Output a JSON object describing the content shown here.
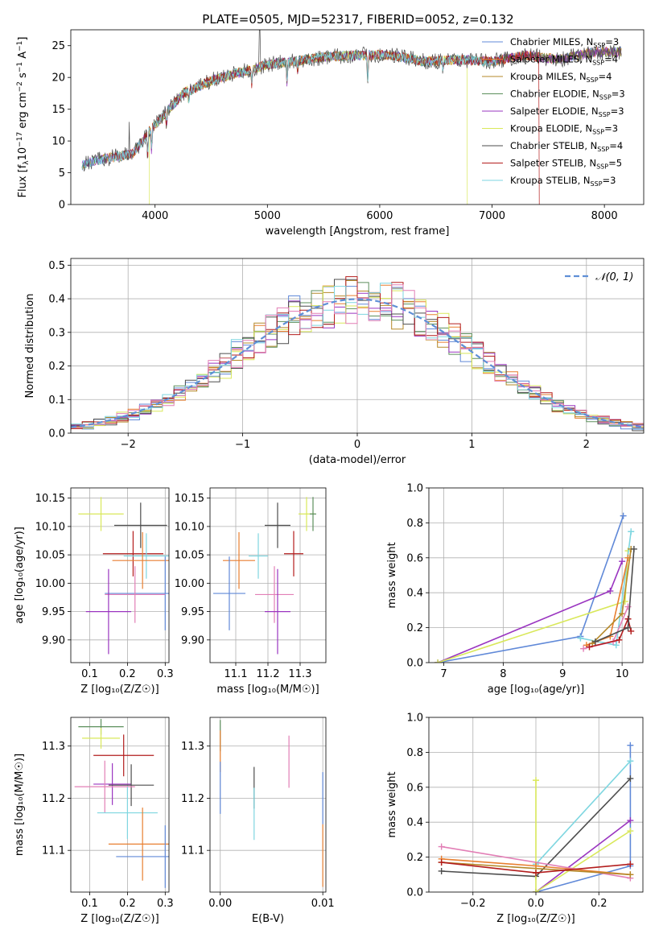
{
  "figure_title": "PLATE=0505, MJD=52317, FIBERID=0052, z=0.132",
  "colors": {
    "Chabrier MILES": "#6089d8",
    "Salpeter MILES": "#e87f30",
    "Kroupa MILES": "#b5892a",
    "Chabrier ELODIE": "#5c8f5c",
    "Salpeter ELODIE": "#9a35c0",
    "Kroupa ELODIE": "#d9e85a",
    "Chabrier STELIB": "#4d4d4d",
    "Salpeter STELIB": "#b31d1d",
    "Kroupa STELIB": "#7ed6e0",
    "pink": "#e27fb6",
    "gauss": "#5f8fd6"
  },
  "chart_data": [
    {
      "id": "spectrum",
      "type": "line",
      "xlabel": "wavelength [Angstrom, rest frame]",
      "ylabel_parts": [
        "Flux [f",
        "λ",
        "10",
        "−17",
        " erg cm",
        "−2",
        " s",
        "−1",
        " A",
        "−1",
        "]"
      ],
      "xlim": [
        3250,
        8350
      ],
      "ylim": [
        0,
        27.5
      ],
      "xticks": [
        4000,
        5000,
        6000,
        7000,
        8000
      ],
      "yticks": [
        0,
        5,
        10,
        15,
        20,
        25
      ],
      "grid": false,
      "legend_position": "top-right",
      "series": [
        {
          "name": "Chabrier MILES",
          "sub": "SSP",
          "n": "3"
        },
        {
          "name": "Salpeter MILES",
          "sub": "SSP",
          "n": "4"
        },
        {
          "name": "Kroupa MILES",
          "sub": "SSP",
          "n": "4"
        },
        {
          "name": "Chabrier ELODIE",
          "sub": "SSP",
          "n": "3"
        },
        {
          "name": "Salpeter ELODIE",
          "sub": "SSP",
          "n": "3"
        },
        {
          "name": "Kroupa ELODIE",
          "sub": "SSP",
          "n": "3"
        },
        {
          "name": "Chabrier STELIB",
          "sub": "SSP",
          "n": "4"
        },
        {
          "name": "Salpeter STELIB",
          "sub": "SSP",
          "n": "5"
        },
        {
          "name": "Kroupa STELIB",
          "sub": "SSP",
          "n": "3"
        }
      ],
      "continuum_x": [
        3350,
        3500,
        3650,
        3800,
        3950,
        4100,
        4250,
        4500,
        4800,
        5000,
        5200,
        5500,
        5800,
        6100,
        6400,
        6700,
        7000,
        7300,
        7600,
        7900,
        8150
      ],
      "continuum_y": [
        6.2,
        7.0,
        7.5,
        8.0,
        11.5,
        14.5,
        17.5,
        19.5,
        21.0,
        22.0,
        22.5,
        23.2,
        23.5,
        23.5,
        22.5,
        22.8,
        22.5,
        23.5,
        22.8,
        24.0,
        24.0
      ]
    },
    {
      "id": "residuals",
      "type": "step",
      "xlabel": "(data-model)/error",
      "ylabel": "Normed distribution",
      "xlim": [
        -2.5,
        2.5
      ],
      "ylim": [
        0,
        0.52
      ],
      "xticks": [
        -2,
        -1,
        0,
        1,
        2
      ],
      "xtick_labels": [
        "−2",
        "−1",
        "0",
        "1",
        "2"
      ],
      "yticks": [
        0.0,
        0.1,
        0.2,
        0.3,
        0.4,
        0.5
      ],
      "ytick_labels": [
        "0.0",
        "0.1",
        "0.2",
        "0.3",
        "0.4",
        "0.5"
      ],
      "grid": true,
      "legend_position": "top-right",
      "legend_label": "𝒩(0, 1)",
      "bin_width": 0.1
    },
    {
      "id": "z_age",
      "type": "errorbar",
      "xlabel": "Z [log₁₀(Z/Z☉)]",
      "ylabel": "age  [log₁₀(age/yr)]",
      "xlim": [
        0.05,
        0.31
      ],
      "ylim": [
        9.86,
        10.168
      ],
      "xticks": [
        0.1,
        0.2,
        0.3
      ],
      "xtick_labels": [
        "0.1",
        "0.2",
        "0.3"
      ],
      "yticks": [
        9.9,
        9.95,
        10.0,
        10.05,
        10.1,
        10.15
      ],
      "ytick_labels": [
        "9.90",
        "9.95",
        "10.00",
        "10.05",
        "10.10",
        "10.15"
      ],
      "grid": true,
      "points": [
        {
          "c": "Kroupa ELODIE",
          "x": 0.13,
          "y": 10.122,
          "xe": 0.06,
          "ye": 0.03
        },
        {
          "c": "Chabrier STELIB",
          "x": 0.235,
          "y": 10.102,
          "xe": 0.07,
          "ye": 0.04
        },
        {
          "c": "Salpeter STELIB",
          "x": 0.215,
          "y": 10.052,
          "xe": 0.08,
          "ye": 0.04
        },
        {
          "c": "Kroupa STELIB",
          "x": 0.25,
          "y": 10.048,
          "xe": 0.06,
          "ye": 0.04
        },
        {
          "c": "Salpeter MILES",
          "x": 0.24,
          "y": 10.04,
          "xe": 0.08,
          "ye": 0.05
        },
        {
          "c": "Chabrier MILES",
          "x": 0.3,
          "y": 9.982,
          "xe": 0.16,
          "ye": 0.065
        },
        {
          "c": "pink",
          "x": 0.22,
          "y": 9.98,
          "xe": 0.08,
          "ye": 0.05
        },
        {
          "c": "Salpeter ELODIE",
          "x": 0.15,
          "y": 9.95,
          "xe": 0.06,
          "ye": 0.075
        }
      ]
    },
    {
      "id": "mass_age",
      "type": "errorbar",
      "xlabel": "mass [log₁₀(M/M☉)]",
      "xlim": [
        11.02,
        11.38
      ],
      "ylim": [
        9.86,
        10.168
      ],
      "xticks": [
        11.1,
        11.2,
        11.3
      ],
      "xtick_labels": [
        "11.1",
        "11.2",
        "11.3"
      ],
      "yticks": [
        9.9,
        9.95,
        10.0,
        10.05,
        10.1,
        10.15
      ],
      "ytick_labels": [
        "9.90",
        "9.95",
        "10.00",
        "10.05",
        "10.10",
        "10.15"
      ],
      "grid": true,
      "points": [
        {
          "c": "Kroupa ELODIE",
          "x": 11.32,
          "y": 10.122,
          "xe": 0.025,
          "ye": 0.03
        },
        {
          "c": "Chabrier ELODIE",
          "x": 11.34,
          "y": 10.122,
          "xe": 0.01,
          "ye": 0.03
        },
        {
          "c": "Chabrier STELIB",
          "x": 11.23,
          "y": 10.102,
          "xe": 0.04,
          "ye": 0.04
        },
        {
          "c": "Salpeter STELIB",
          "x": 11.28,
          "y": 10.052,
          "xe": 0.03,
          "ye": 0.04
        },
        {
          "c": "Kroupa STELIB",
          "x": 11.17,
          "y": 10.048,
          "xe": 0.03,
          "ye": 0.04
        },
        {
          "c": "Salpeter MILES",
          "x": 11.11,
          "y": 10.04,
          "xe": 0.05,
          "ye": 0.05
        },
        {
          "c": "Chabrier MILES",
          "x": 11.08,
          "y": 9.982,
          "xe": 0.05,
          "ye": 0.065
        },
        {
          "c": "pink",
          "x": 11.22,
          "y": 9.98,
          "xe": 0.06,
          "ye": 0.05
        },
        {
          "c": "Salpeter ELODIE",
          "x": 11.23,
          "y": 9.95,
          "xe": 0.04,
          "ye": 0.075
        }
      ]
    },
    {
      "id": "age_weight",
      "type": "line",
      "xlabel": "age  [log₁₀(age/yr)]",
      "ylabel": "mass weight",
      "xlim": [
        6.75,
        10.35
      ],
      "ylim": [
        0,
        1.0
      ],
      "xticks": [
        7,
        8,
        9,
        10
      ],
      "xtick_labels": [
        "7",
        "8",
        "9",
        "10"
      ],
      "yticks": [
        0.0,
        0.2,
        0.4,
        0.6,
        0.8,
        1.0
      ],
      "ytick_labels": [
        "0.0",
        "0.2",
        "0.4",
        "0.6",
        "0.8",
        "1.0"
      ],
      "grid": true,
      "series": [
        {
          "c": "Chabrier MILES",
          "x": [
            6.9,
            9.3,
            10.02
          ],
          "y": [
            0.0,
            0.15,
            0.84
          ]
        },
        {
          "c": "Salpeter ELODIE",
          "x": [
            6.9,
            9.8,
            10.0
          ],
          "y": [
            0.0,
            0.41,
            0.58
          ]
        },
        {
          "c": "Kroupa ELODIE",
          "x": [
            6.9,
            10.05,
            10.1
          ],
          "y": [
            0.0,
            0.35,
            0.64
          ]
        },
        {
          "c": "Kroupa STELIB",
          "x": [
            9.3,
            9.9,
            10.15
          ],
          "y": [
            0.14,
            0.1,
            0.75
          ]
        },
        {
          "c": "Salpeter MILES",
          "x": [
            9.4,
            9.8,
            10.1
          ],
          "y": [
            0.1,
            0.15,
            0.6
          ]
        },
        {
          "c": "Kroupa MILES",
          "x": [
            9.5,
            10.0,
            10.15
          ],
          "y": [
            0.11,
            0.28,
            0.65
          ]
        },
        {
          "c": "pink",
          "x": [
            9.35,
            9.85,
            10.1
          ],
          "y": [
            0.08,
            0.12,
            0.32
          ]
        },
        {
          "c": "Salpeter STELIB",
          "x": [
            9.45,
            9.95,
            10.1,
            10.15
          ],
          "y": [
            0.09,
            0.13,
            0.25,
            0.18
          ]
        },
        {
          "c": "Chabrier STELIB",
          "x": [
            9.55,
            10.1,
            10.2
          ],
          "y": [
            0.12,
            0.2,
            0.65
          ]
        }
      ]
    },
    {
      "id": "z_mass",
      "type": "errorbar",
      "xlabel": "Z [log₁₀(Z/Z☉)]",
      "ylabel": "mass [log₁₀(M/M☉)]",
      "xlim": [
        0.05,
        0.31
      ],
      "ylim": [
        11.02,
        11.355
      ],
      "xticks": [
        0.1,
        0.2,
        0.3
      ],
      "xtick_labels": [
        "0.1",
        "0.2",
        "0.3"
      ],
      "yticks": [
        11.1,
        11.2,
        11.3
      ],
      "ytick_labels": [
        "11.1",
        "11.2",
        "11.3"
      ],
      "grid": true,
      "points": [
        {
          "c": "Chabrier ELODIE",
          "x": 0.13,
          "y": 11.337,
          "xe": 0.06,
          "ye": 0.015
        },
        {
          "c": "Kroupa ELODIE",
          "x": 0.13,
          "y": 11.315,
          "xe": 0.05,
          "ye": 0.02
        },
        {
          "c": "Salpeter STELIB",
          "x": 0.19,
          "y": 11.282,
          "xe": 0.08,
          "ye": 0.04
        },
        {
          "c": "Salpeter ELODIE",
          "x": 0.16,
          "y": 11.227,
          "xe": 0.05,
          "ye": 0.04
        },
        {
          "c": "Chabrier STELIB",
          "x": 0.21,
          "y": 11.225,
          "xe": 0.06,
          "ye": 0.04
        },
        {
          "c": "pink",
          "x": 0.14,
          "y": 11.222,
          "xe": 0.08,
          "ye": 0.05
        },
        {
          "c": "Kroupa STELIB",
          "x": 0.2,
          "y": 11.172,
          "xe": 0.08,
          "ye": 0.05
        },
        {
          "c": "Salpeter MILES",
          "x": 0.24,
          "y": 11.112,
          "xe": 0.09,
          "ye": 0.07
        },
        {
          "c": "Chabrier MILES",
          "x": 0.3,
          "y": 11.088,
          "xe": 0.13,
          "ye": 0.06
        }
      ]
    },
    {
      "id": "ebv_mass",
      "type": "errorbar",
      "xlabel": "E(B-V)",
      "xlim": [
        -0.001,
        0.0103
      ],
      "ylim": [
        11.02,
        11.355
      ],
      "xticks": [
        0.0,
        0.01
      ],
      "xtick_labels": [
        "0.00",
        "0.01"
      ],
      "yticks": [
        11.1,
        11.2,
        11.3
      ],
      "ytick_labels": [
        "11.1",
        "11.2",
        "11.3"
      ],
      "grid": true,
      "points": [
        {
          "c": "Chabrier ELODIE",
          "x": 0.0,
          "y": 11.32,
          "xe": 0,
          "ye": 0.03
        },
        {
          "c": "Salpeter MILES",
          "x": 0.0,
          "y": 11.29,
          "xe": 0,
          "ye": 0.04
        },
        {
          "c": "Chabrier MILES",
          "x": 0.0,
          "y": 11.22,
          "xe": 0,
          "ye": 0.05
        },
        {
          "c": "Chabrier STELIB",
          "x": 0.0033,
          "y": 11.22,
          "xe": 0,
          "ye": 0.04
        },
        {
          "c": "Kroupa STELIB",
          "x": 0.0033,
          "y": 11.17,
          "xe": 0,
          "ye": 0.05
        },
        {
          "c": "pink",
          "x": 0.0067,
          "y": 11.27,
          "xe": 0,
          "ye": 0.05
        },
        {
          "c": "Chabrier MILES",
          "x": 0.01,
          "y": 11.2,
          "xe": 0,
          "ye": 0.05
        },
        {
          "c": "Salpeter MILES",
          "x": 0.01,
          "y": 11.09,
          "xe": 0,
          "ye": 0.06
        }
      ]
    },
    {
      "id": "z_weight",
      "type": "line",
      "xlabel": "Z [log₁₀(Z/Z☉)]",
      "ylabel": "mass weight",
      "xlim": [
        -0.34,
        0.34
      ],
      "ylim": [
        0,
        1.0
      ],
      "xticks": [
        -0.2,
        0.0,
        0.2
      ],
      "xtick_labels": [
        "−0.2",
        "0.0",
        "0.2"
      ],
      "yticks": [
        0.0,
        0.2,
        0.4,
        0.6,
        0.8,
        1.0
      ],
      "ytick_labels": [
        "0.0",
        "0.2",
        "0.4",
        "0.6",
        "0.8",
        "1.0"
      ],
      "grid": true,
      "series": [
        {
          "c": "Chabrier MILES",
          "x": [
            0.0,
            0.3,
            0.3
          ],
          "y": [
            0.0,
            0.15,
            0.84
          ]
        },
        {
          "c": "Kroupa STELIB",
          "x": [
            0.0,
            0.3
          ],
          "y": [
            0.16,
            0.75
          ]
        },
        {
          "c": "Chabrier STELIB",
          "x": [
            -0.3,
            0.0,
            0.3
          ],
          "y": [
            0.12,
            0.09,
            0.65
          ]
        },
        {
          "c": "Salpeter ELODIE",
          "x": [
            0.0,
            0.3
          ],
          "y": [
            0.0,
            0.41
          ]
        },
        {
          "c": "Kroupa ELODIE",
          "x": [
            0.0,
            0.0,
            0.3
          ],
          "y": [
            0.64,
            0.0,
            0.35
          ]
        },
        {
          "c": "pink",
          "x": [
            -0.3,
            0.3
          ],
          "y": [
            0.26,
            0.08
          ]
        },
        {
          "c": "Salpeter MILES",
          "x": [
            -0.3,
            0.0,
            0.3
          ],
          "y": [
            0.19,
            0.15,
            0.1
          ]
        },
        {
          "c": "Kroupa MILES",
          "x": [
            -0.3,
            0.3
          ],
          "y": [
            0.17,
            0.1
          ]
        },
        {
          "c": "Salpeter STELIB",
          "x": [
            -0.3,
            0.0,
            0.3
          ],
          "y": [
            0.17,
            0.11,
            0.16
          ]
        }
      ]
    }
  ]
}
